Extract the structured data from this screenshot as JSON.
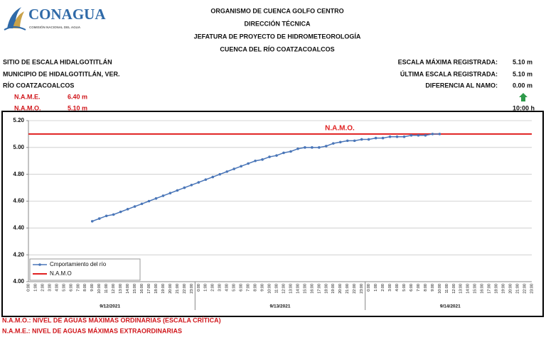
{
  "header": {
    "logo_title": "CONAGUA",
    "logo_subtitle": "COMISIÓN NACIONAL DEL AGUA",
    "titles": [
      "ORGANISMO DE CUENCA GOLFO CENTRO",
      "DIRECCIÓN TÉCNICA",
      "JEFATURA DE PROYECTO DE HIDROMETEOROLOGÍA",
      "CUENCA DEL RÍO COATZACOALCOS"
    ]
  },
  "info": {
    "left": [
      "SITIO DE ESCALA HIDALGOTITLÁN",
      "MUNICIPIO DE HIDALGOTITLÁN, VER.",
      "RÍO COATZACOALCOS"
    ],
    "levels": [
      {
        "label": "N.A.M.E.",
        "value": "6.40 m"
      },
      {
        "label": "N.A.M.O.",
        "value": "5.10 m"
      }
    ],
    "right": [
      {
        "label": "ESCALA MÁXIMA REGISTRADA:",
        "value": "5.10 m"
      },
      {
        "label": "ÚLTIMA ESCALA REGISTRADA:",
        "value": "5.10 m"
      },
      {
        "label": "DIFERENCIA AL NAMO:",
        "value": "0.00 m"
      }
    ],
    "time": "10:00 h"
  },
  "chart_data": {
    "type": "line",
    "categories": [
      "0:00",
      "1:00",
      "2:00",
      "3:00",
      "4:00",
      "5:00",
      "6:00",
      "7:00",
      "8:00",
      "9:00",
      "10:00",
      "11:00",
      "12:00",
      "13:00",
      "14:00",
      "15:00",
      "16:00",
      "17:00",
      "18:00",
      "19:00",
      "20:00",
      "21:00",
      "22:00",
      "23:00",
      "0:00",
      "1:00",
      "2:00",
      "3:00",
      "4:00",
      "5:00",
      "6:00",
      "7:00",
      "8:00",
      "9:00",
      "10:00",
      "11:00",
      "12:00",
      "13:00",
      "14:00",
      "15:00",
      "16:00",
      "17:00",
      "18:00",
      "19:00",
      "20:00",
      "21:00",
      "22:00",
      "23:00",
      "0:00",
      "1:00",
      "2:00",
      "3:00",
      "4:00",
      "5:00",
      "6:00",
      "7:00",
      "8:00",
      "9:00",
      "10:00",
      "11:00",
      "12:00",
      "13:00",
      "14:00",
      "15:00",
      "16:00",
      "17:00",
      "18:00",
      "19:00",
      "20:00",
      "21:00",
      "22:00",
      "23:00"
    ],
    "date_groups": [
      "9/12/2021",
      "9/13/2021",
      "9/14/2021"
    ],
    "series": [
      {
        "name": "Cmportamiento del río",
        "color": "#4a76b8",
        "values": [
          null,
          null,
          null,
          null,
          null,
          null,
          null,
          null,
          null,
          4.45,
          4.47,
          4.49,
          4.5,
          4.52,
          4.54,
          4.56,
          4.58,
          4.6,
          4.62,
          4.64,
          4.66,
          4.68,
          4.7,
          4.72,
          4.74,
          4.76,
          4.78,
          4.8,
          4.82,
          4.84,
          4.86,
          4.88,
          4.9,
          4.91,
          4.93,
          4.94,
          4.96,
          4.97,
          4.99,
          5.0,
          5.0,
          5.0,
          5.01,
          5.03,
          5.04,
          5.05,
          5.05,
          5.06,
          5.06,
          5.07,
          5.07,
          5.08,
          5.08,
          5.08,
          5.09,
          5.09,
          5.09,
          5.1,
          5.1,
          null,
          null,
          null,
          null,
          null,
          null,
          null,
          null,
          null,
          null,
          null,
          null,
          null
        ]
      }
    ],
    "hlines": [
      {
        "name": "N.A.M.O",
        "label": "N.A.M.O.",
        "value": 5.1,
        "color": "#e02020"
      }
    ],
    "ylim": [
      4,
      5.2
    ],
    "yticks": [
      {
        "value": 4,
        "label": "4.00"
      },
      {
        "value": 4.2,
        "label": "4.20"
      },
      {
        "value": 4.4,
        "label": "4.40"
      },
      {
        "value": 4.6,
        "label": "4.60"
      },
      {
        "value": 4.8,
        "label": "4.80"
      },
      {
        "value": 5,
        "label": "5.00"
      },
      {
        "value": 5.2,
        "label": "5.20"
      }
    ],
    "grid": true,
    "legend": "lower left"
  },
  "footer": [
    "N.A.M.O.: NIVEL DE AGUAS MÁXIMAS ORDINARIAS (ESCALA CRÍTICA)",
    "N.A.M.E.: NIVEL DE AGUAS MÁXIMAS EXTRAORDINARIAS"
  ]
}
